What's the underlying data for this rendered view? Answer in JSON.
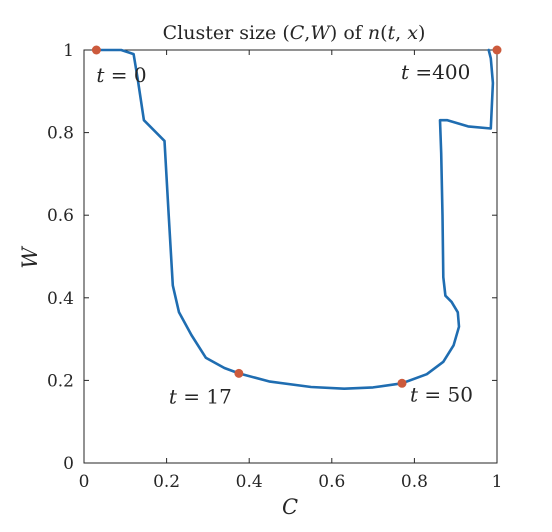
{
  "chart_data": {
    "type": "line",
    "title": "Cluster size (C,W) of n(t,x)",
    "title_parts": {
      "prefix": "Cluster size (",
      "c": "C",
      "comma": ",",
      "w": "W",
      "middle": ") of ",
      "n": "n",
      "paren_open": "(",
      "t": "t",
      "sep": ", ",
      "x": "x",
      "paren_close": ")"
    },
    "xlabel": "C",
    "ylabel": "W",
    "xlim": [
      0,
      1
    ],
    "ylim": [
      0,
      1
    ],
    "xticks": [
      0,
      0.2,
      0.4,
      0.6,
      0.8,
      1
    ],
    "yticks": [
      0,
      0.2,
      0.4,
      0.6,
      0.8,
      1
    ],
    "xtick_labels": [
      "0",
      "0.2",
      "0.4",
      "0.6",
      "0.8",
      "1"
    ],
    "ytick_labels": [
      "0",
      "0.2",
      "0.4",
      "0.6",
      "0.8",
      "1"
    ],
    "grid": false,
    "line_color": "#1f6db1",
    "marker_color": "#cc5a3c",
    "curve": [
      [
        0.03,
        1.0
      ],
      [
        0.09,
        1.0
      ],
      [
        0.12,
        0.99
      ],
      [
        0.13,
        0.93
      ],
      [
        0.145,
        0.83
      ],
      [
        0.195,
        0.78
      ],
      [
        0.205,
        0.6
      ],
      [
        0.215,
        0.43
      ],
      [
        0.23,
        0.365
      ],
      [
        0.26,
        0.31
      ],
      [
        0.295,
        0.255
      ],
      [
        0.34,
        0.23
      ],
      [
        0.375,
        0.217
      ],
      [
        0.45,
        0.197
      ],
      [
        0.55,
        0.184
      ],
      [
        0.63,
        0.18
      ],
      [
        0.7,
        0.183
      ],
      [
        0.77,
        0.193
      ],
      [
        0.83,
        0.215
      ],
      [
        0.87,
        0.245
      ],
      [
        0.895,
        0.285
      ],
      [
        0.908,
        0.33
      ],
      [
        0.905,
        0.365
      ],
      [
        0.89,
        0.39
      ],
      [
        0.875,
        0.405
      ],
      [
        0.87,
        0.45
      ],
      [
        0.868,
        0.6
      ],
      [
        0.865,
        0.75
      ],
      [
        0.862,
        0.83
      ],
      [
        0.88,
        0.83
      ],
      [
        0.93,
        0.815
      ],
      [
        0.985,
        0.81
      ],
      [
        0.99,
        0.92
      ],
      [
        0.985,
        0.98
      ],
      [
        0.98,
        1.0
      ]
    ],
    "annotations": [
      {
        "t": "0",
        "C": 0.03,
        "W": 1.0
      },
      {
        "t": "400",
        "C": 1.0,
        "W": 1.0
      },
      {
        "t": "17",
        "C": 0.375,
        "W": 0.217
      },
      {
        "t": "50",
        "C": 0.77,
        "W": 0.193
      }
    ]
  }
}
